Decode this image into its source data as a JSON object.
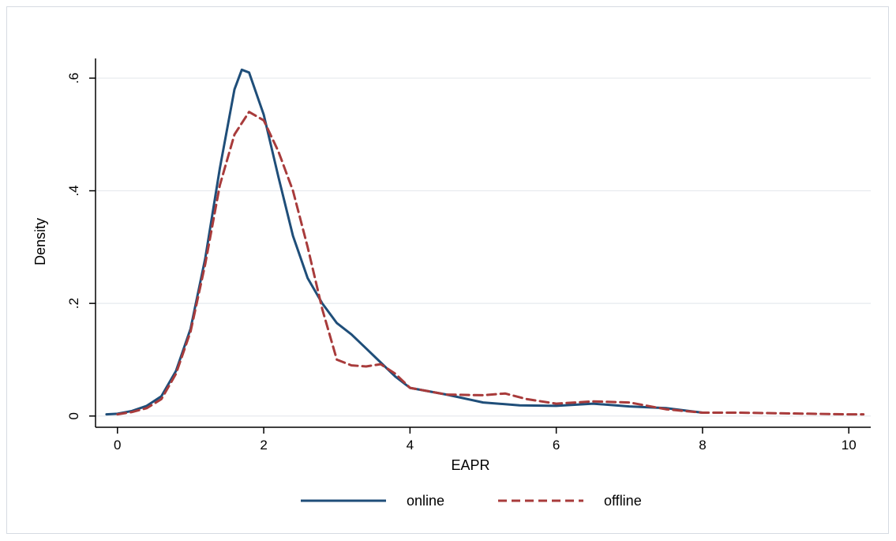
{
  "chart_data": {
    "type": "line",
    "title": "",
    "xlabel": "EAPR",
    "ylabel": "Density",
    "xlim": [
      -0.3,
      10.3
    ],
    "ylim": [
      -0.02,
      0.635
    ],
    "x_ticks": [
      0,
      2,
      4,
      6,
      8,
      10
    ],
    "x_tick_labels": [
      "0",
      "2",
      "4",
      "6",
      "8",
      "10"
    ],
    "y_ticks": [
      0,
      0.2,
      0.4,
      0.6
    ],
    "y_tick_labels": [
      "0",
      ".2",
      ".4",
      ".6"
    ],
    "grid": true,
    "legend_position": "bottom",
    "series": [
      {
        "name": "online",
        "color": "#1f4e79",
        "style": "solid",
        "x": [
          -0.15,
          0.0,
          0.2,
          0.4,
          0.6,
          0.8,
          1.0,
          1.2,
          1.4,
          1.6,
          1.7,
          1.8,
          2.0,
          2.2,
          2.4,
          2.6,
          2.8,
          3.0,
          3.2,
          3.4,
          3.6,
          3.8,
          4.0,
          4.5,
          5.0,
          5.5,
          6.0,
          6.5,
          7.0,
          7.5,
          8.0
        ],
        "y": [
          0.003,
          0.004,
          0.009,
          0.018,
          0.035,
          0.08,
          0.155,
          0.28,
          0.44,
          0.58,
          0.615,
          0.61,
          0.535,
          0.425,
          0.32,
          0.245,
          0.2,
          0.165,
          0.145,
          0.12,
          0.095,
          0.07,
          0.05,
          0.038,
          0.024,
          0.019,
          0.018,
          0.022,
          0.017,
          0.014,
          0.006
        ]
      },
      {
        "name": "offline",
        "color": "#a83b3b",
        "style": "dashed",
        "x": [
          0.0,
          0.2,
          0.4,
          0.6,
          0.8,
          1.0,
          1.2,
          1.4,
          1.6,
          1.8,
          2.0,
          2.2,
          2.4,
          2.6,
          2.8,
          3.0,
          3.2,
          3.4,
          3.6,
          3.8,
          4.0,
          4.5,
          5.0,
          5.3,
          5.6,
          6.0,
          6.5,
          7.0,
          7.5,
          8.0,
          8.5,
          9.0,
          9.5,
          10.0,
          10.2
        ],
        "y": [
          0.003,
          0.007,
          0.014,
          0.03,
          0.075,
          0.15,
          0.27,
          0.41,
          0.5,
          0.54,
          0.525,
          0.47,
          0.4,
          0.3,
          0.19,
          0.1,
          0.09,
          0.088,
          0.092,
          0.075,
          0.05,
          0.038,
          0.037,
          0.04,
          0.03,
          0.022,
          0.026,
          0.024,
          0.012,
          0.006,
          0.006,
          0.005,
          0.004,
          0.003,
          0.003
        ]
      }
    ]
  }
}
